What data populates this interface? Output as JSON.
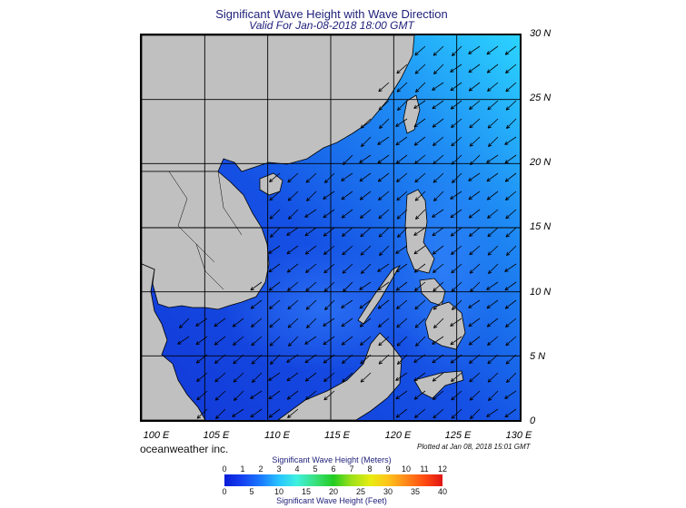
{
  "title": "Significant Wave Height with Wave Direction",
  "subtitle": "Valid For Jan-08-2018 18:00 GMT",
  "lat_labels": [
    "30 N",
    "25 N",
    "20 N",
    "15 N",
    "10 N",
    "5 N",
    "0"
  ],
  "lon_labels": [
    "100 E",
    "105 E",
    "110 E",
    "115 E",
    "120 E",
    "125 E",
    "130 E"
  ],
  "brand": "oceanweather inc.",
  "plotted": "Plotted at Jan 08, 2018 15:01 GMT",
  "legend": {
    "title_meters": "Significant Wave Height (Meters)",
    "title_feet": "Significant Wave Height (Feet)",
    "meters": [
      "0",
      "1",
      "2",
      "3",
      "4",
      "5",
      "6",
      "7",
      "8",
      "9",
      "10",
      "11",
      "12"
    ],
    "feet": [
      "0",
      "5",
      "10",
      "15",
      "20",
      "25",
      "30",
      "35",
      "40"
    ]
  },
  "colors": {
    "land": "#c0c0c0",
    "sea_deep": "#1232d8",
    "sea_mid": "#1f6cf0",
    "sea_high": "#27c8ff",
    "arrow": "#000000",
    "title": "#1e1e7a"
  },
  "map": {
    "lon_range": [
      100,
      130
    ],
    "lat_range": [
      0,
      30
    ],
    "wave_direction": "from northeast"
  }
}
